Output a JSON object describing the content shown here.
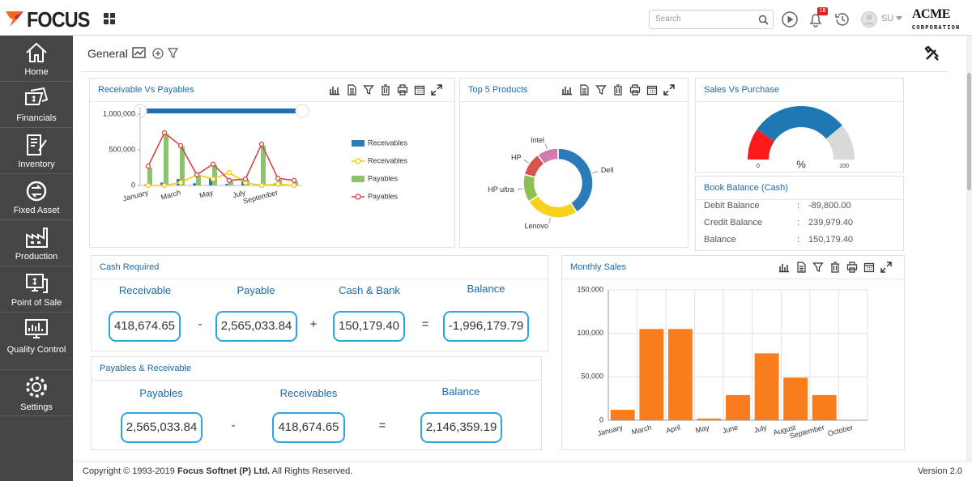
{
  "header": {
    "logo": "FOCUS",
    "search_placeholder": "Search",
    "notifications": "18",
    "user": "SU",
    "company": [
      "ACME",
      "CORPORATION"
    ]
  },
  "sidebar": [
    "Home",
    "Financials",
    "Inventory",
    "Fixed Asset",
    "Production",
    "Point of Sale",
    "Quality Control",
    "Settings"
  ],
  "toolbar": {
    "title": "General"
  },
  "chart_data": [
    {
      "type": "combo",
      "title": "Receivable Vs Payables",
      "categories": [
        "January",
        null,
        "March",
        null,
        "May",
        null,
        "July",
        null,
        "September",
        null
      ],
      "ylim": [
        0,
        1100000
      ],
      "yticks": [
        0,
        {
          "value": 500000,
          "label": "500,000"
        },
        {
          "value": 1000000,
          "label": "1,000,000"
        }
      ],
      "series": [
        {
          "name": "Receivables",
          "kind": "bar",
          "color": "#2b7bb9",
          "values": [
            10000,
            40000,
            90000,
            30000,
            110000,
            20000,
            60000,
            10000,
            30000,
            10000
          ]
        },
        {
          "name": "Receivables",
          "kind": "line",
          "color": "#f2d000",
          "values": [
            0,
            0,
            40000,
            150000,
            90000,
            180000,
            40000,
            0,
            20000,
            0
          ]
        },
        {
          "name": "Payables",
          "kind": "bar",
          "color": "#8dc26f",
          "values": [
            250000,
            720000,
            550000,
            140000,
            290000,
            60000,
            80000,
            560000,
            80000,
            60000
          ]
        },
        {
          "name": "Payables",
          "kind": "line",
          "color": "#d64545",
          "values": [
            270000,
            740000,
            560000,
            150000,
            300000,
            70000,
            90000,
            580000,
            100000,
            70000
          ]
        }
      ]
    },
    {
      "type": "donut",
      "title": "Top 5 Products",
      "categories": [
        "Dell",
        "Lenovo",
        "HP ultra",
        "HP",
        "Intel"
      ],
      "values": [
        41,
        25,
        13,
        11,
        10
      ],
      "colors": [
        "#2b7bb9",
        "#f5d21c",
        "#8cc152",
        "#d9534f",
        "#d27bab"
      ]
    },
    {
      "type": "gauge",
      "title": "Sales Vs Purchase",
      "unit": "%",
      "ylim": [
        0,
        100
      ],
      "yticks": [
        0,
        100
      ],
      "values": [
        19,
        59,
        22
      ],
      "colors": [
        "#ff1a1a",
        "#1f78b4",
        "#d9d9d9"
      ]
    },
    {
      "type": "bar",
      "title": "Monthly Sales",
      "categories": [
        "January",
        "March",
        "April",
        "May",
        "June",
        "July",
        "August",
        "September",
        "October"
      ],
      "values": [
        12000,
        105000,
        105000,
        2000,
        29000,
        77000,
        49000,
        29000,
        0
      ],
      "color": "#f97d1c",
      "ylim": [
        0,
        150000
      ],
      "yticks": [
        0,
        {
          "value": 50000,
          "label": "50,000"
        },
        {
          "value": 100000,
          "label": "100,000"
        },
        {
          "value": 150000,
          "label": "150,000"
        }
      ],
      "grid": true
    }
  ],
  "book_balance": {
    "title": "Book Balance (Cash)",
    "separator": ":",
    "rows": [
      {
        "label": "Debit Balance",
        "value": "-89,800.00"
      },
      {
        "label": "Credit Balance",
        "value": "239,979.40"
      },
      {
        "label": "Balance",
        "value": "150,179.40"
      }
    ]
  },
  "cash_required": {
    "title": "Cash Required",
    "items": [
      {
        "label": "Receivable",
        "value": "418,674.65"
      },
      {
        "label": "Payable",
        "value": "2,565,033.84"
      },
      {
        "label": "Cash & Bank",
        "value": "150,179.40"
      },
      {
        "label": "Balance",
        "value": "-1,996,179.79"
      }
    ],
    "operators": [
      "-",
      "+",
      "="
    ]
  },
  "payables_receivable": {
    "title": "Payables & Receivable",
    "items": [
      {
        "label": "Payables",
        "value": "2,565,033.84"
      },
      {
        "label": "Receivables",
        "value": "418,674.65"
      },
      {
        "label": "Balance",
        "value": "2,146,359.19"
      }
    ],
    "operators": [
      "-",
      "="
    ]
  },
  "footer": {
    "copyright": "Copyright © 1993-2019 ",
    "company": "Focus Softnet (P) Ltd.",
    "rights": " All Rights Reserved.",
    "version": "Version 2.0"
  }
}
